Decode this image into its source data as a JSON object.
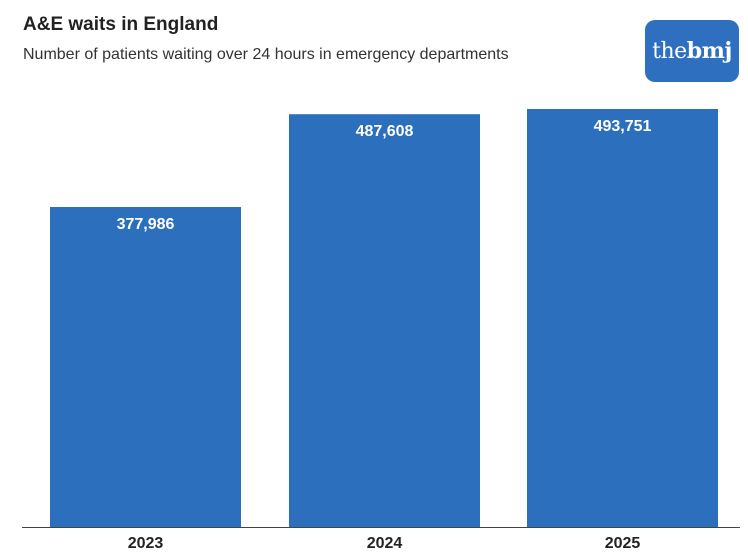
{
  "header": {
    "title": "A&E waits in England",
    "subtitle": "Number of patients waiting over 24 hours in emergency departments"
  },
  "logo": {
    "text_the": "the",
    "text_bmj": "bmj",
    "color": "#2e6fbf"
  },
  "colors": {
    "bar": "#2b6fbd",
    "axis": "#444444"
  },
  "chart_data": {
    "type": "bar",
    "title": "A&E waits in England",
    "subtitle": "Number of patients waiting over 24 hours in emergency departments",
    "categories": [
      "2023",
      "2024",
      "2025"
    ],
    "values": [
      377986,
      487608,
      493751
    ],
    "value_labels": [
      "377,986",
      "487,608",
      "493,751"
    ],
    "xlabel": "",
    "ylabel": "",
    "ylim": [
      0,
      493751
    ],
    "grid": false,
    "legend": "none"
  }
}
